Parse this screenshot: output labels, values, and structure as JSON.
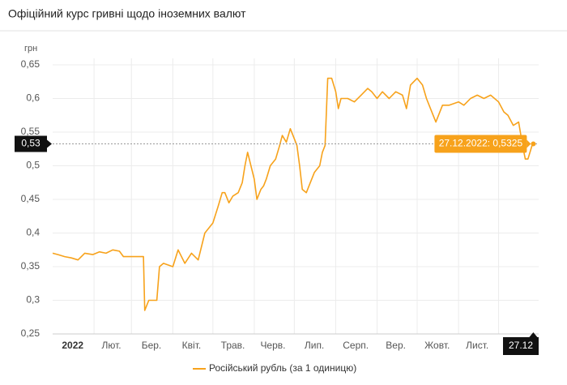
{
  "chart_data": {
    "type": "line",
    "title": "Офіційний курс гривні щодо іноземних валют",
    "y_label": "грн",
    "x": [
      "01.01",
      "05.01",
      "10.01",
      "15.01",
      "20.01",
      "25.01",
      "31.01",
      "05.02",
      "10.02",
      "15.02",
      "20.02",
      "23.02",
      "28.02",
      "05.03",
      "10.03",
      "11.03",
      "14.03",
      "20.03",
      "22.03",
      "25.03",
      "01.04",
      "05.04",
      "10.04",
      "15.04",
      "20.04",
      "25.04",
      "01.05",
      "05.05",
      "08.05",
      "10.05",
      "13.05",
      "16.05",
      "20.05",
      "23.05",
      "25.05",
      "27.05",
      "01.06",
      "03.06",
      "06.06",
      "08.06",
      "10.06",
      "13.06",
      "17.06",
      "20.06",
      "22.06",
      "25.06",
      "28.06",
      "01.07",
      "03.07",
      "05.07",
      "07.07",
      "10.07",
      "13.07",
      "16.07",
      "20.07",
      "22.07",
      "24.07",
      "26.07",
      "29.07",
      "01.08",
      "03.08",
      "05.08",
      "10.08",
      "15.08",
      "20.08",
      "25.08",
      "28.08",
      "01.09",
      "05.09",
      "10.09",
      "15.09",
      "20.09",
      "23.09",
      "26.09",
      "01.10",
      "05.10",
      "08.10",
      "12.10",
      "15.10",
      "20.10",
      "25.10",
      "01.11",
      "05.11",
      "10.11",
      "15.11",
      "20.11",
      "25.11",
      "01.12",
      "05.12",
      "08.12",
      "12.12",
      "16.12",
      "19.12",
      "21.12",
      "23.12",
      "26.12",
      "27.12"
    ],
    "series": [
      {
        "name": "Російський рубль (за 1 одиницю)",
        "color": "#f7a21b",
        "values": [
          0.37,
          0.368,
          0.365,
          0.363,
          0.36,
          0.37,
          0.368,
          0.372,
          0.37,
          0.375,
          0.373,
          0.365,
          0.365,
          0.365,
          0.365,
          0.285,
          0.3,
          0.3,
          0.35,
          0.355,
          0.35,
          0.375,
          0.355,
          0.37,
          0.36,
          0.4,
          0.415,
          0.44,
          0.46,
          0.46,
          0.445,
          0.455,
          0.46,
          0.475,
          0.5,
          0.52,
          0.48,
          0.45,
          0.465,
          0.47,
          0.48,
          0.5,
          0.51,
          0.53,
          0.545,
          0.535,
          0.555,
          0.54,
          0.53,
          0.5,
          0.465,
          0.46,
          0.475,
          0.49,
          0.5,
          0.52,
          0.53,
          0.63,
          0.63,
          0.61,
          0.585,
          0.6,
          0.6,
          0.595,
          0.605,
          0.615,
          0.61,
          0.6,
          0.61,
          0.6,
          0.61,
          0.605,
          0.585,
          0.62,
          0.63,
          0.62,
          0.6,
          0.58,
          0.565,
          0.59,
          0.59,
          0.595,
          0.59,
          0.6,
          0.605,
          0.6,
          0.605,
          0.595,
          0.58,
          0.575,
          0.56,
          0.565,
          0.53,
          0.51,
          0.51,
          0.53,
          0.5325
        ]
      }
    ],
    "xlim": [
      "01.01",
      "31.12"
    ],
    "xticks": [
      {
        "value": "16.01",
        "label": "2022"
      },
      {
        "value": "14.02",
        "label": "Лют."
      },
      {
        "value": "16.03",
        "label": "Бер."
      },
      {
        "value": "15.04",
        "label": "Квіт."
      },
      {
        "value": "16.05",
        "label": "Трав."
      },
      {
        "value": "15.06",
        "label": "Черв."
      },
      {
        "value": "16.07",
        "label": "Лип."
      },
      {
        "value": "16.08",
        "label": "Серп."
      },
      {
        "value": "15.09",
        "label": "Вер."
      },
      {
        "value": "16.10",
        "label": "Жовт."
      },
      {
        "value": "15.11",
        "label": "Лист."
      }
    ],
    "ylim": [
      0.25,
      0.65
    ],
    "yticks": [
      {
        "value": 0.25,
        "label": "0,25"
      },
      {
        "value": 0.3,
        "label": "0,3"
      },
      {
        "value": 0.35,
        "label": "0,35"
      },
      {
        "value": 0.4,
        "label": "0,4"
      },
      {
        "value": 0.45,
        "label": "0,45"
      },
      {
        "value": 0.5,
        "label": "0,5"
      },
      {
        "value": 0.55,
        "label": "0,55"
      },
      {
        "value": 0.6,
        "label": "0,6"
      },
      {
        "value": 0.65,
        "label": "0,65"
      }
    ],
    "grid": true,
    "crosshair": {
      "x": "27.12",
      "value": 0.5325,
      "y_label": "0,53",
      "tooltip": "27.12.2022: 0,5325"
    }
  }
}
